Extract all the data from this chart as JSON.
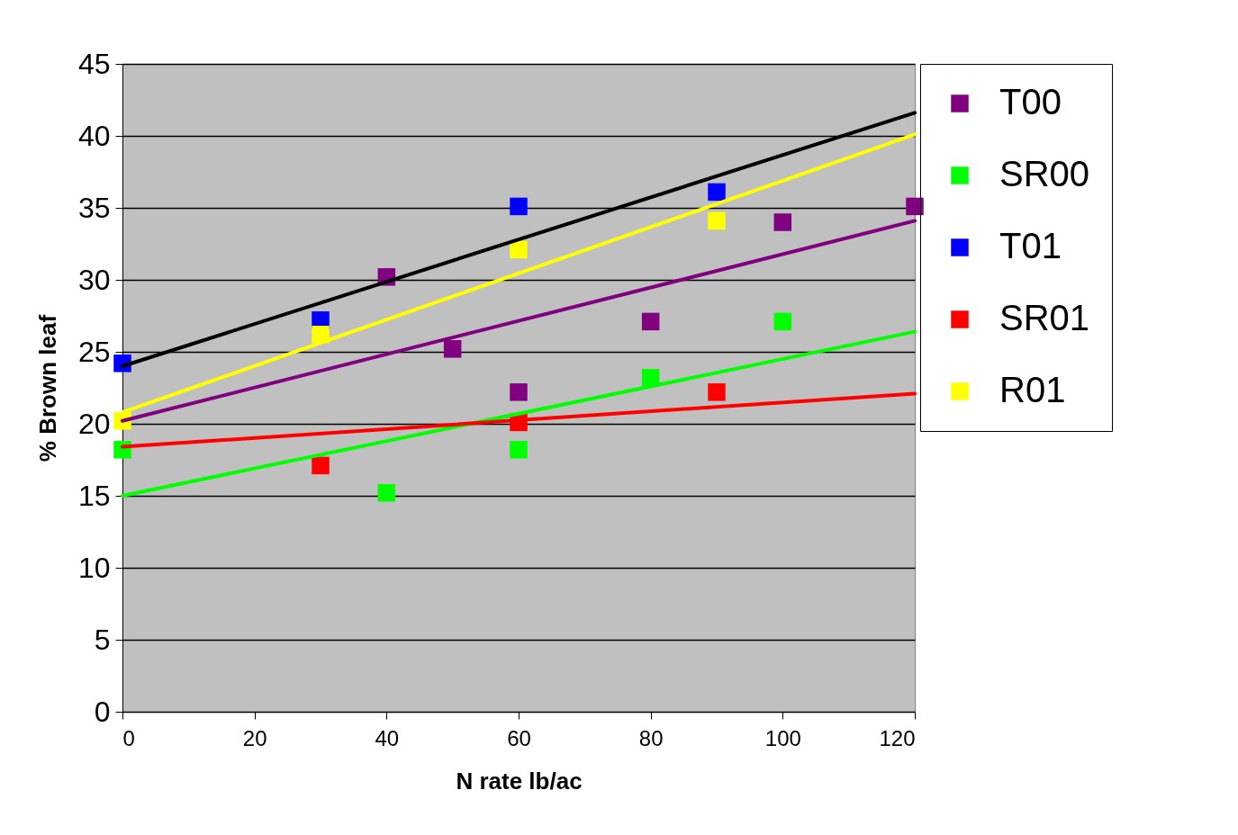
{
  "chart_data": {
    "type": "scatter",
    "xlabel": "N rate lb/ac",
    "ylabel": "% Brown leaf",
    "xlim": [
      0,
      120
    ],
    "ylim": [
      0,
      45
    ],
    "xticks": [
      0,
      20,
      40,
      60,
      80,
      100,
      120
    ],
    "yticks": [
      0,
      5,
      10,
      15,
      20,
      25,
      30,
      35,
      40,
      45
    ],
    "grid": "y",
    "legend": "right",
    "marker": "square",
    "series": [
      {
        "name": "T00",
        "color": "#800080",
        "x": [
          40,
          50,
          60,
          80,
          100,
          120
        ],
        "values": [
          30.2,
          25.2,
          22.2,
          27.1,
          34,
          35.1
        ]
      },
      {
        "name": "SR00",
        "color": "#00ff00",
        "x": [
          0,
          40,
          60,
          80,
          100
        ],
        "values": [
          18.2,
          15.2,
          18.2,
          23.2,
          27.1
        ]
      },
      {
        "name": "T01",
        "color": "#0000ff",
        "x": [
          0,
          30,
          60,
          90
        ],
        "values": [
          24.2,
          27.2,
          35.1,
          36.1
        ]
      },
      {
        "name": "SR01",
        "color": "#ff0000",
        "x": [
          30,
          60,
          90
        ],
        "values": [
          17.1,
          20.1,
          22.2
        ]
      },
      {
        "name": "R01",
        "color": "#ffff00",
        "x": [
          0,
          30,
          60,
          90
        ],
        "values": [
          20.2,
          26.2,
          32.1,
          34.1
        ]
      },
      {
        "type": "line",
        "marker": "none",
        "color": "#800080",
        "x": [
          0,
          120
        ],
        "values": [
          20.2,
          34.1
        ]
      },
      {
        "type": "line",
        "marker": "none",
        "color": "#00ff00",
        "x": [
          0,
          120
        ],
        "values": [
          15,
          26.4
        ]
      },
      {
        "type": "line",
        "marker": "none",
        "color": "#000000",
        "x": [
          0,
          120
        ],
        "values": [
          24,
          41.6
        ]
      },
      {
        "type": "line",
        "marker": "none",
        "color": "#ff0000",
        "x": [
          0,
          120
        ],
        "values": [
          18.4,
          22.1
        ]
      },
      {
        "type": "line",
        "marker": "none",
        "color": "#ffff00",
        "x": [
          0,
          120
        ],
        "values": [
          20.8,
          40.1
        ]
      }
    ]
  }
}
